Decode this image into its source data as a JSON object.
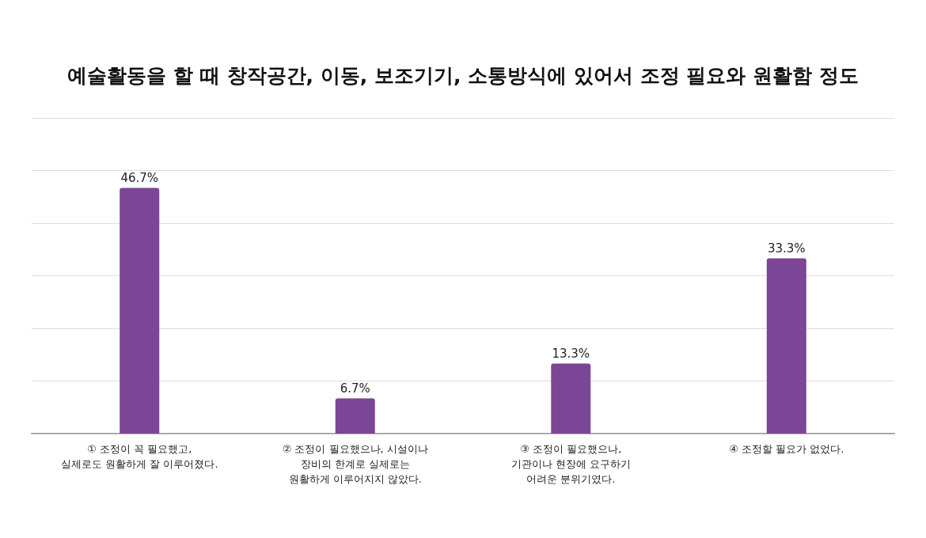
{
  "chart_data": {
    "type": "bar",
    "title": "예술활동을 할 때 창작공간, 이동, 보조기기, 소통방식에 있어서 조정 필요와 원활함 정도",
    "categories": [
      "① 조정이 꼭 필요했고,\n실제로도 원활하게 잘 이루어졌다.",
      "② 조정이 필요했으나, 시설이나\n장비의 한계로 실제로는\n원활하게 이루어지지 않았다.",
      "③ 조정이 필요했으나,\n기관이나 현장에 요구하기\n어려운 분위기였다.",
      "④ 조정할 필요가 없었다."
    ],
    "values": [
      46.7,
      6.7,
      13.3,
      33.3
    ],
    "value_labels": [
      "46.7%",
      "6.7%",
      "13.3%",
      "33.3%"
    ],
    "color": "#7b4696",
    "ylim": [
      0,
      60
    ],
    "yticks": [
      {
        "value": 0,
        "label": null
      },
      {
        "value": 10,
        "label": null
      },
      {
        "value": 20,
        "label": null
      },
      {
        "value": 30,
        "label": null
      },
      {
        "value": 40,
        "label": null
      },
      {
        "value": 50,
        "label": null
      },
      {
        "value": 60,
        "label": null
      }
    ],
    "tick_labels": "x",
    "grid": "y"
  }
}
